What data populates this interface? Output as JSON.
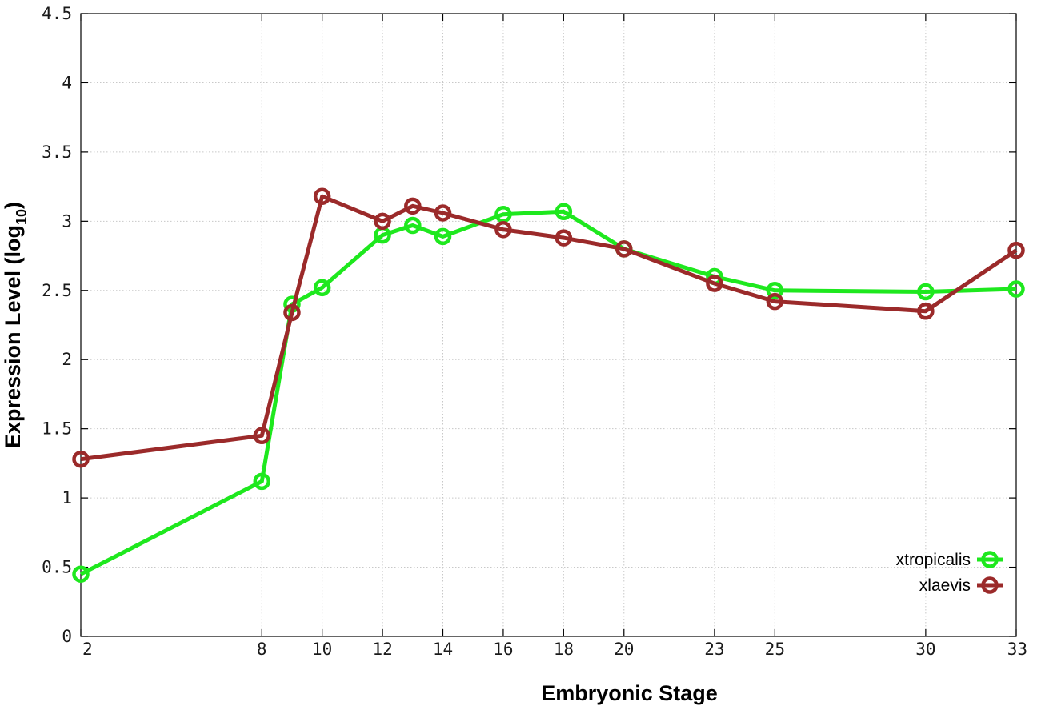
{
  "chart_data": {
    "type": "line",
    "xlabel": "Embryonic Stage",
    "ylabel": "Expression Level (log",
    "ylabel_subscript": "10",
    "ylabel_suffix": ")",
    "x_ticks": [
      2,
      8,
      10,
      12,
      14,
      16,
      18,
      20,
      23,
      25,
      30,
      33
    ],
    "y_ticks": [
      "0",
      "0.5",
      "1",
      "1.5",
      "2",
      "2.5",
      "3",
      "3.5",
      "4",
      "4.5"
    ],
    "xlim": [
      2,
      33
    ],
    "ylim": [
      0,
      4.5
    ],
    "grid": true,
    "legend_position": "bottom-right",
    "series": [
      {
        "name": "xtropicalis",
        "color": "#1ee81e",
        "x": [
          2,
          8,
          9,
          10,
          12,
          13,
          14,
          16,
          18,
          20,
          23,
          25,
          30,
          33
        ],
        "values": [
          0.45,
          1.12,
          2.4,
          2.52,
          2.9,
          2.97,
          2.89,
          3.05,
          3.07,
          2.8,
          2.6,
          2.5,
          2.49,
          2.51
        ]
      },
      {
        "name": "xlaevis",
        "color": "#9b2a2a",
        "x": [
          2,
          8,
          9,
          10,
          12,
          13,
          14,
          16,
          18,
          20,
          23,
          25,
          30,
          33
        ],
        "values": [
          1.28,
          1.45,
          2.34,
          3.18,
          3.0,
          3.11,
          3.06,
          2.94,
          2.88,
          2.8,
          2.55,
          2.42,
          2.35,
          2.79
        ]
      }
    ]
  }
}
